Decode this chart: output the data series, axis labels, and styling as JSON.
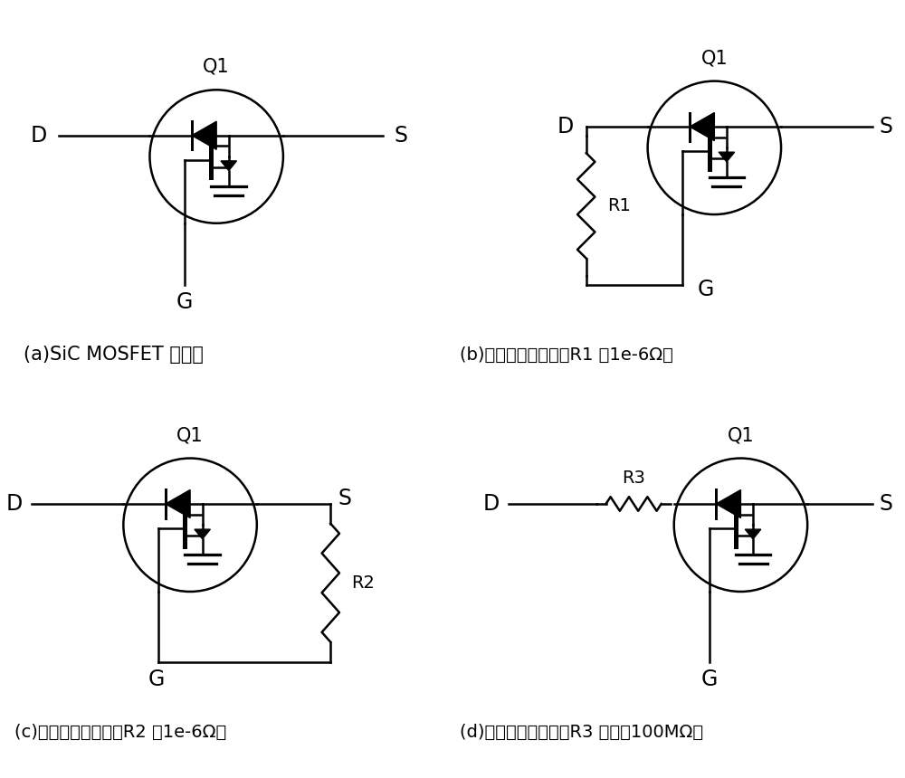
{
  "bg_color": "#ffffff",
  "line_color": "#000000",
  "line_width": 1.8,
  "caption_a": "(a)SiC MOSFET 无故障",
  "caption_b": "(b)栊漏极短路故障（R1 为1e-6Ω）",
  "caption_c": "(c)栊源极短路故障（R2 为1e-6Ω）",
  "caption_d": "(d)漏源极开路故障（R3 阻值为100MΩ）",
  "font_size_caption": 15,
  "font_size_label": 17,
  "font_size_q": 15
}
